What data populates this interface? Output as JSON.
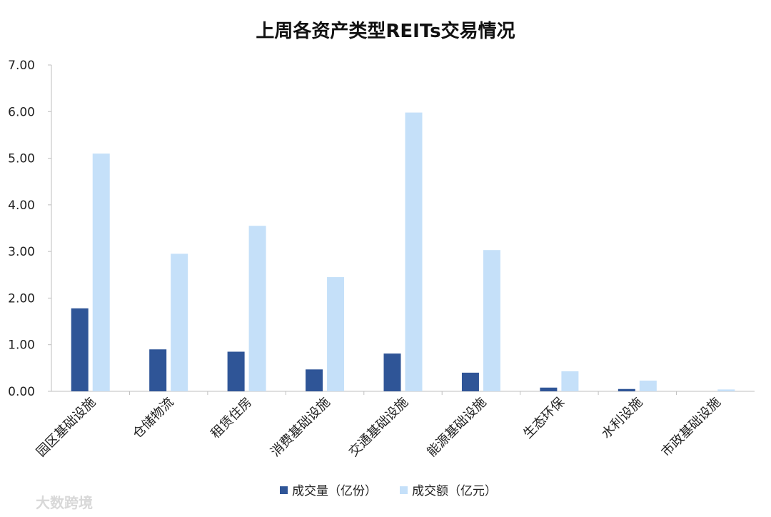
{
  "watermark": "大数跨境",
  "chart_data": {
    "type": "bar",
    "title": "上周各资产类型REITs交易情况",
    "categories": [
      "园区基础设施",
      "仓储物流",
      "租赁住房",
      "消费基础设施",
      "交通基础设施",
      "能源基础设施",
      "生态环保",
      "水利设施",
      "市政基础设施"
    ],
    "series": [
      {
        "name": "成交量（亿份）",
        "color": "#2f5597",
        "values": [
          1.78,
          0.9,
          0.85,
          0.47,
          0.81,
          0.4,
          0.08,
          0.05,
          0.0
        ]
      },
      {
        "name": "成交额（亿元）",
        "color": "#c5e0f9",
        "values": [
          5.1,
          2.95,
          3.55,
          2.45,
          5.98,
          3.03,
          0.43,
          0.23,
          0.04
        ]
      }
    ],
    "ylim": [
      0,
      7
    ],
    "yticks": [
      "0.00",
      "1.00",
      "2.00",
      "3.00",
      "4.00",
      "5.00",
      "6.00",
      "7.00"
    ],
    "legend_position": "bottom",
    "grid": false
  }
}
